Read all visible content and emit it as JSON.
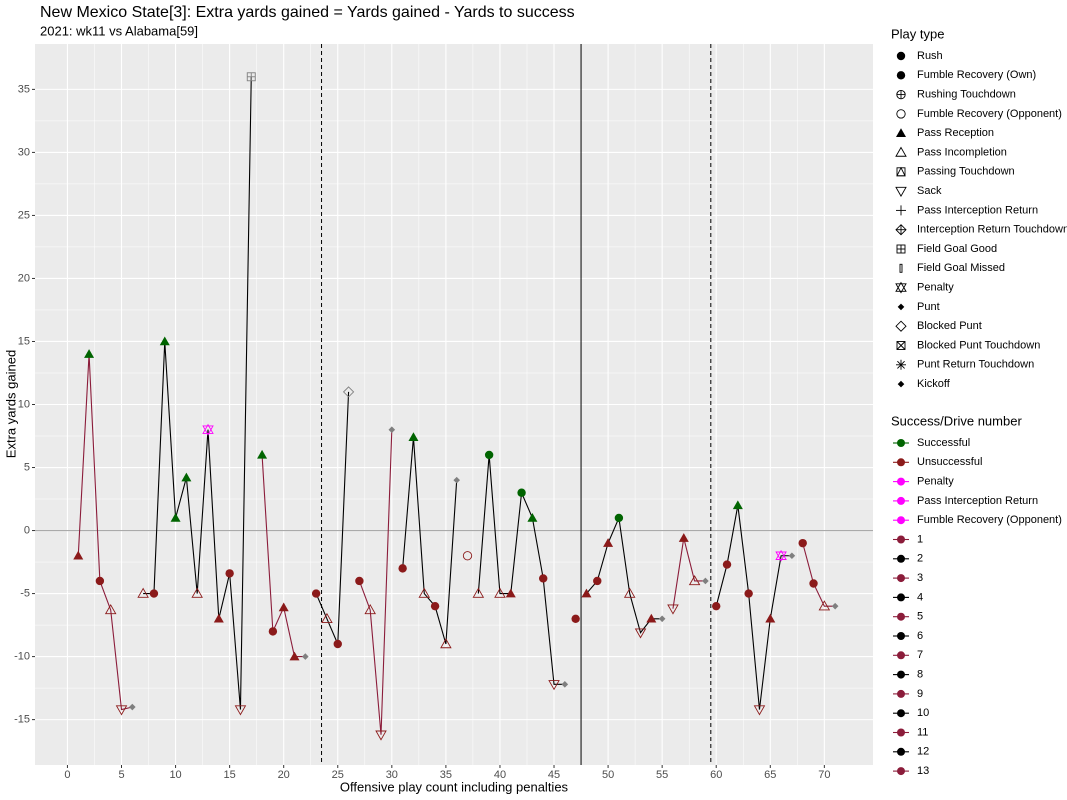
{
  "chart_data": {
    "type": "scatter",
    "title": "New Mexico State[3]: Extra yards gained = Yards gained - Yards to success",
    "subtitle": "2021: wk11 vs Alabama[59]",
    "x_label": "Offensive play count including penalties",
    "y_label": "Extra yards gained",
    "xlim": [
      -3,
      74.5
    ],
    "ylim": [
      -18.6,
      38.6
    ],
    "xticks": [
      0,
      5,
      10,
      15,
      20,
      25,
      30,
      35,
      40,
      45,
      50,
      55,
      60,
      65,
      70
    ],
    "yticks": [
      -15,
      -10,
      -5,
      0,
      5,
      10,
      15,
      20,
      25,
      30,
      35
    ],
    "grid": true,
    "hline": 0,
    "vlines": [
      {
        "x": 23.5,
        "linetype": "dashed"
      },
      {
        "x": 47.5,
        "linetype": "solid"
      },
      {
        "x": 59.5,
        "linetype": "dashed"
      }
    ],
    "na_color": "#7f7f7f",
    "play_type_title": "Play type",
    "play_types": [
      {
        "name": "Rush",
        "shape": "circle"
      },
      {
        "name": "Fumble Recovery (Own)",
        "shape": "circle"
      },
      {
        "name": "Rushing Touchdown",
        "shape": "circle-plus"
      },
      {
        "name": "Fumble Recovery (Opponent)",
        "shape": "circle-open"
      },
      {
        "name": "Pass Reception",
        "shape": "triangle"
      },
      {
        "name": "Pass Incompletion",
        "shape": "triangle-open"
      },
      {
        "name": "Passing Touchdown",
        "shape": "square-triangle"
      },
      {
        "name": "Sack",
        "shape": "triangle-down-open"
      },
      {
        "name": "Pass Interception Return",
        "shape": "plus"
      },
      {
        "name": "Interception Return Touchdown",
        "shape": "diamond-plus"
      },
      {
        "name": "Field Goal Good",
        "shape": "square-plus"
      },
      {
        "name": "Field Goal Missed",
        "shape": "bar"
      },
      {
        "name": "Penalty",
        "shape": "star-open"
      },
      {
        "name": "Punt",
        "shape": "diamond-small"
      },
      {
        "name": "Blocked Punt",
        "shape": "diamond-open"
      },
      {
        "name": "Blocked Punt Touchdown",
        "shape": "square-x"
      },
      {
        "name": "Punt Return Touchdown",
        "shape": "asterisk"
      },
      {
        "name": "Kickoff",
        "shape": "diamond-small"
      }
    ],
    "success_title": "Success/Drive number",
    "success_levels": [
      {
        "name": "Successful",
        "color": "#006400"
      },
      {
        "name": "Unsuccessful",
        "color": "#8b1a1a"
      },
      {
        "name": "Penalty",
        "color": "#ff00ff"
      },
      {
        "name": "Pass Interception Return",
        "color": "#ff00ff"
      },
      {
        "name": "Fumble Recovery (Opponent)",
        "color": "#ff00ff"
      }
    ],
    "drives": [
      {
        "name": "1",
        "color": "#8b1c3a"
      },
      {
        "name": "2",
        "color": "#000000"
      },
      {
        "name": "3",
        "color": "#8b1c3a"
      },
      {
        "name": "4",
        "color": "#000000"
      },
      {
        "name": "5",
        "color": "#8b1c3a"
      },
      {
        "name": "6",
        "color": "#000000"
      },
      {
        "name": "7",
        "color": "#8b1c3a"
      },
      {
        "name": "8",
        "color": "#000000"
      },
      {
        "name": "9",
        "color": "#8b1c3a"
      },
      {
        "name": "10",
        "color": "#000000"
      },
      {
        "name": "11",
        "color": "#8b1c3a"
      },
      {
        "name": "12",
        "color": "#000000"
      },
      {
        "name": "13",
        "color": "#8b1c3a"
      }
    ],
    "points": {
      "x": [
        1,
        2,
        3,
        4,
        5,
        6,
        7,
        8,
        9,
        10,
        11,
        12,
        13,
        14,
        15,
        16,
        17,
        18,
        19,
        20,
        21,
        22,
        23,
        24,
        25,
        26,
        27,
        28,
        29,
        30,
        31,
        32,
        33,
        34,
        35,
        36,
        37,
        38,
        39,
        40,
        41,
        42,
        43,
        44,
        45,
        46,
        47,
        48,
        49,
        50,
        51,
        52,
        53,
        54,
        55,
        56,
        57,
        58,
        59,
        60,
        61,
        62,
        63,
        64,
        65,
        66,
        67,
        68,
        69,
        70,
        71
      ],
      "y": [
        -2,
        14,
        -4,
        -6.3,
        -14.2,
        -14,
        -5,
        -5,
        15,
        1,
        4.2,
        -5,
        8,
        -7,
        -3.4,
        -14.2,
        36,
        6,
        -8,
        -6.1,
        -10,
        -10,
        -5,
        -7,
        -9,
        11,
        -4,
        -6.3,
        -16.2,
        8,
        -3,
        7.4,
        -5,
        -6,
        -9,
        4,
        -2,
        -5,
        6,
        -5,
        -5,
        3,
        1,
        -3.8,
        -12.2,
        -12.2,
        -7,
        -5,
        -4,
        -1,
        1,
        -5,
        -8.1,
        -7,
        -7,
        -6.2,
        -0.6,
        -4,
        -4,
        -6,
        -2.7,
        2,
        -5,
        -14.2,
        -7,
        -2,
        -2,
        -1,
        -4.2,
        -6,
        -6
      ],
      "play_type": [
        "Pass Reception",
        "Pass Reception",
        "Rush",
        "Pass Incompletion",
        "Sack",
        "Punt",
        "Pass Incompletion",
        "Rush",
        "Pass Reception",
        "Pass Reception",
        "Pass Reception",
        "Pass Incompletion",
        "Penalty",
        "Pass Reception",
        "Rush",
        "Sack",
        "Field Goal Good",
        "Pass Reception",
        "Rush",
        "Pass Reception",
        "Pass Reception",
        "Punt",
        "Rush",
        "Pass Incompletion",
        "Rush",
        "Blocked Punt",
        "Rush",
        "Pass Incompletion",
        "Sack",
        "Punt",
        "Rush",
        "Pass Reception",
        "Pass Incompletion",
        "Rush",
        "Pass Incompletion",
        "Punt",
        "Fumble Recovery (Opponent)",
        "Pass Incompletion",
        "Rush",
        "Pass Incompletion",
        "Pass Reception",
        "Rush",
        "Pass Reception",
        "Rush",
        "Sack",
        "Punt",
        "Rush",
        "Pass Reception",
        "Rush",
        "Pass Reception",
        "Rush",
        "Pass Incompletion",
        "Sack",
        "Pass Reception",
        "Punt",
        "Sack",
        "Pass Reception",
        "Pass Incompletion",
        "Punt",
        "Rush",
        "Rush",
        "Pass Reception",
        "Rush",
        "Sack",
        "Pass Reception",
        "Penalty",
        "Punt",
        "Rush",
        "Rush",
        "Pass Incompletion",
        "Punt"
      ],
      "success": [
        "Unsuccessful",
        "Successful",
        "Unsuccessful",
        "Unsuccessful",
        "Unsuccessful",
        null,
        "Unsuccessful",
        "Unsuccessful",
        "Successful",
        "Successful",
        "Successful",
        "Unsuccessful",
        "Penalty",
        "Unsuccessful",
        "Unsuccessful",
        "Unsuccessful",
        null,
        "Successful",
        "Unsuccessful",
        "Unsuccessful",
        "Unsuccessful",
        null,
        "Unsuccessful",
        "Unsuccessful",
        "Unsuccessful",
        null,
        "Unsuccessful",
        "Unsuccessful",
        "Unsuccessful",
        null,
        "Unsuccessful",
        "Successful",
        "Unsuccessful",
        "Unsuccessful",
        "Unsuccessful",
        null,
        "Unsuccessful",
        "Unsuccessful",
        "Successful",
        "Unsuccessful",
        "Unsuccessful",
        "Successful",
        "Successful",
        "Unsuccessful",
        "Unsuccessful",
        null,
        "Unsuccessful",
        "Unsuccessful",
        "Unsuccessful",
        "Unsuccessful",
        "Successful",
        "Unsuccessful",
        "Unsuccessful",
        "Unsuccessful",
        null,
        "Unsuccessful",
        "Unsuccessful",
        "Unsuccessful",
        null,
        "Unsuccessful",
        "Unsuccessful",
        "Successful",
        "Unsuccessful",
        "Unsuccessful",
        "Unsuccessful",
        "Penalty",
        null,
        "Unsuccessful",
        "Unsuccessful",
        "Unsuccessful",
        null
      ],
      "drive": [
        "1",
        "1",
        "1",
        "1",
        "1",
        "1",
        "2",
        "2",
        "2",
        "2",
        "2",
        "2",
        "2",
        "2",
        "2",
        "2",
        "2",
        "3",
        "3",
        "3",
        "3",
        "3",
        "4",
        "4",
        "4",
        "4",
        "5",
        "5",
        "5",
        "5",
        "6",
        "6",
        "6",
        "6",
        "6",
        "6",
        "7",
        "8",
        "8",
        "8",
        "8",
        "8",
        "8",
        "8",
        "8",
        "8",
        "9",
        "10",
        "10",
        "10",
        "10",
        "10",
        "10",
        "10",
        "10",
        "11",
        "11",
        "11",
        "11",
        "12",
        "12",
        "12",
        "12",
        "12",
        "12",
        "12",
        "12",
        "13",
        "13",
        "13",
        "13"
      ]
    }
  }
}
